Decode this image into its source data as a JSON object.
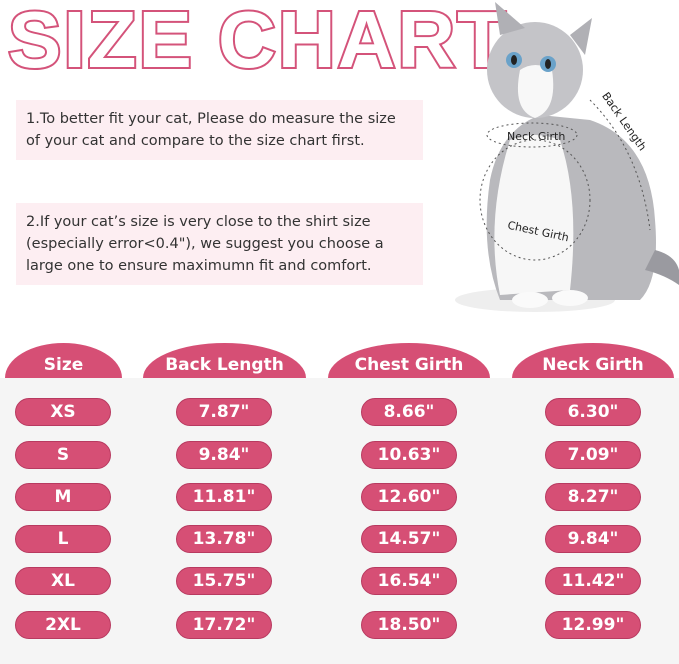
{
  "title": "SIZE CHART",
  "notes": [
    "1.To better fit your cat, Please do measure the size of your cat and compare to the size chart first.",
    "2.If your cat’s size is very close to the shirt size (especially error<0.4\"), we suggest you choose a large one to ensure maximumn fit and comfort."
  ],
  "diagram_labels": {
    "neck": "Neck Girth",
    "chest": "Chest Girth",
    "back": "Back Length"
  },
  "colors": {
    "accent": "#d64f75",
    "note_bg": "#fdeef2",
    "table_bg": "#f5f5f5"
  },
  "table": {
    "headers": [
      "Size",
      "Back Length",
      "Chest Girth",
      "Neck Girth"
    ],
    "rows": [
      [
        "XS",
        "7.87\"",
        "8.66\"",
        "6.30\""
      ],
      [
        "S",
        "9.84\"",
        "10.63\"",
        "7.09\""
      ],
      [
        "M",
        "11.81\"",
        "12.60\"",
        "8.27\""
      ],
      [
        "L",
        "13.78\"",
        "14.57\"",
        "9.84\""
      ],
      [
        "XL",
        "15.75\"",
        "16.54\"",
        "11.42\""
      ],
      [
        "2XL",
        "17.72\"",
        "18.50\"",
        "12.99\""
      ]
    ]
  }
}
